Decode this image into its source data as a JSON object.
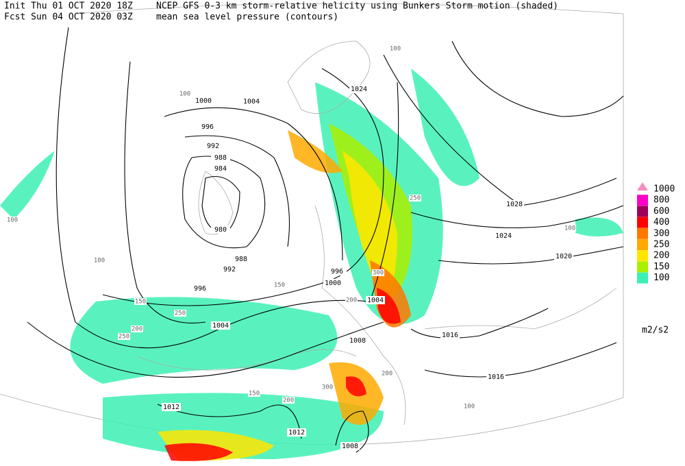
{
  "header": {
    "init": "Init  Thu 01 OCT 2020 18Z",
    "fcst": "Fcst Sun 04 OCT 2020 03Z",
    "title": "NCEP GFS 0-3 km storm-relative helicity using Bunkers Storm motion (shaded)",
    "subtitle": "mean sea level pressure (contours)"
  },
  "legend": {
    "levels": [
      {
        "value": 1000,
        "color": "#f48cc0"
      },
      {
        "value": 800,
        "color": "#ff00c8"
      },
      {
        "value": 600,
        "color": "#a0005a"
      },
      {
        "value": 400,
        "color": "#ff0000"
      },
      {
        "value": 300,
        "color": "#ff7800"
      },
      {
        "value": 250,
        "color": "#ffaa00"
      },
      {
        "value": 200,
        "color": "#ffe600"
      },
      {
        "value": 150,
        "color": "#aaf000"
      },
      {
        "value": 100,
        "color": "#3cf0b4"
      }
    ],
    "unit": "m2/s2"
  },
  "isobar_labels": [
    1000,
    1004,
    996,
    992,
    988,
    984,
    980,
    988,
    992,
    996,
    996,
    1000,
    1004,
    1004,
    1008,
    1012,
    1012,
    1008,
    1016,
    1016,
    1020,
    1024,
    1028,
    1024
  ],
  "helicity_labels": [
    100,
    100,
    100,
    100,
    100,
    100,
    150,
    150,
    150,
    200,
    200,
    200,
    200,
    250,
    250,
    250,
    300,
    300
  ]
}
